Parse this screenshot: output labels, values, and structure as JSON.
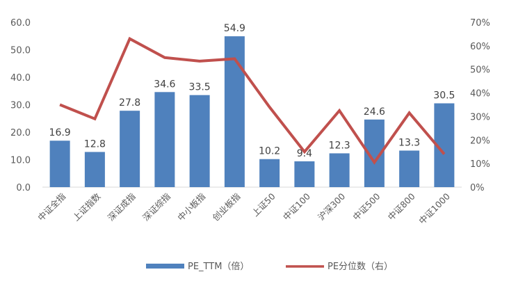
{
  "chart_data": {
    "type": "bar+line",
    "categories": [
      "中证全指",
      "上证指数",
      "深证成指",
      "深证综指",
      "中小板指",
      "创业板指",
      "上证50",
      "中证100",
      "沪深300",
      "中证500",
      "中证800",
      "中证1000"
    ],
    "series": [
      {
        "name": "PE_TTM（倍）",
        "type": "bar",
        "axis": "left",
        "color": "#4F81BD",
        "values": [
          16.9,
          12.8,
          27.8,
          34.6,
          33.5,
          54.9,
          10.2,
          9.4,
          12.3,
          24.6,
          13.3,
          30.5
        ],
        "labels": [
          "16.9",
          "12.8",
          "27.8",
          "34.6",
          "33.5",
          "54.9",
          "10.2",
          "9.4",
          "12.3",
          "24.6",
          "13.3",
          "30.5"
        ]
      },
      {
        "name": "PE分位数（右）",
        "type": "line",
        "axis": "right",
        "color": "#C0504D",
        "values": [
          0.35,
          0.29,
          0.63,
          0.55,
          0.535,
          0.545,
          0.34,
          0.15,
          0.325,
          0.105,
          0.315,
          0.14
        ]
      }
    ],
    "left_axis": {
      "min": 0,
      "max": 60,
      "step": 10,
      "tick_labels": [
        "0.0",
        "10.0",
        "20.0",
        "30.0",
        "40.0",
        "50.0",
        "60.0"
      ]
    },
    "right_axis": {
      "min": 0,
      "max": 0.7,
      "step": 0.1,
      "tick_labels": [
        "0%",
        "10%",
        "20%",
        "30%",
        "40%",
        "50%",
        "60%",
        "70%"
      ]
    },
    "legend": {
      "position": "bottom",
      "bar_label": "PE_TTM（倍）",
      "line_label": "PE分位数（右）"
    },
    "title": "",
    "xlabel": "",
    "ylabel": "",
    "grid": false
  }
}
